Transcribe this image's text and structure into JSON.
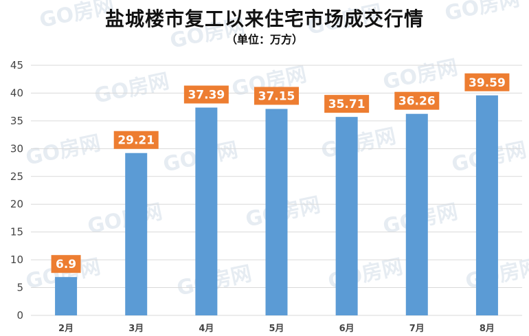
{
  "title": {
    "part1": "盐城楼市复工以来",
    "highlight": "住宅市场",
    "part2": "成交行情"
  },
  "subtitle": "（单位：万方）",
  "watermark": "GO房网",
  "colors": {
    "bar": "#5b9bd5",
    "label_box": "#ed7d31",
    "title_highlight": "#e8141d",
    "grid": "#d9d9d9"
  },
  "chart_data": {
    "type": "bar",
    "title": "盐城楼市复工以来住宅市场成交行情",
    "subtitle": "（单位：万方）",
    "categories": [
      "2月",
      "3月",
      "4月",
      "5月",
      "6月",
      "7月",
      "8月"
    ],
    "values": [
      6.9,
      29.21,
      37.39,
      37.15,
      35.71,
      36.26,
      39.59
    ],
    "value_labels": [
      "6.9",
      "29.21",
      "37.39",
      "37.15",
      "35.71",
      "36.26",
      "39.59"
    ],
    "ylim": [
      0,
      45
    ],
    "yticks": [
      0,
      5,
      10,
      15,
      20,
      25,
      30,
      35,
      40,
      45
    ],
    "grid": true,
    "legend": "none"
  }
}
